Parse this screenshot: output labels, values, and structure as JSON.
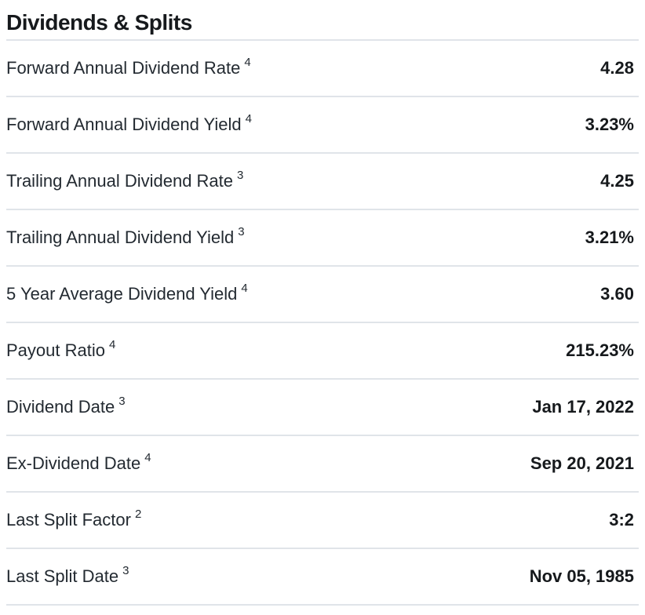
{
  "section": {
    "title": "Dividends & Splits"
  },
  "rows": [
    {
      "label": "Forward Annual Dividend Rate",
      "sup": "4",
      "value": "4.28"
    },
    {
      "label": "Forward Annual Dividend Yield",
      "sup": "4",
      "value": "3.23%"
    },
    {
      "label": "Trailing Annual Dividend Rate",
      "sup": "3",
      "value": "4.25"
    },
    {
      "label": "Trailing Annual Dividend Yield",
      "sup": "3",
      "value": "3.21%"
    },
    {
      "label": "5 Year Average Dividend Yield",
      "sup": "4",
      "value": "3.60"
    },
    {
      "label": "Payout Ratio",
      "sup": "4",
      "value": "215.23%"
    },
    {
      "label": "Dividend Date",
      "sup": "3",
      "value": "Jan 17, 2022"
    },
    {
      "label": "Ex-Dividend Date",
      "sup": "4",
      "value": "Sep 20, 2021"
    },
    {
      "label": "Last Split Factor",
      "sup": "2",
      "value": "3:2"
    },
    {
      "label": "Last Split Date",
      "sup": "3",
      "value": "Nov 05, 1985"
    }
  ],
  "colors": {
    "divider": "#e0e4e9",
    "label_text": "#232a31",
    "value_text": "#16191c",
    "background": "#ffffff"
  }
}
